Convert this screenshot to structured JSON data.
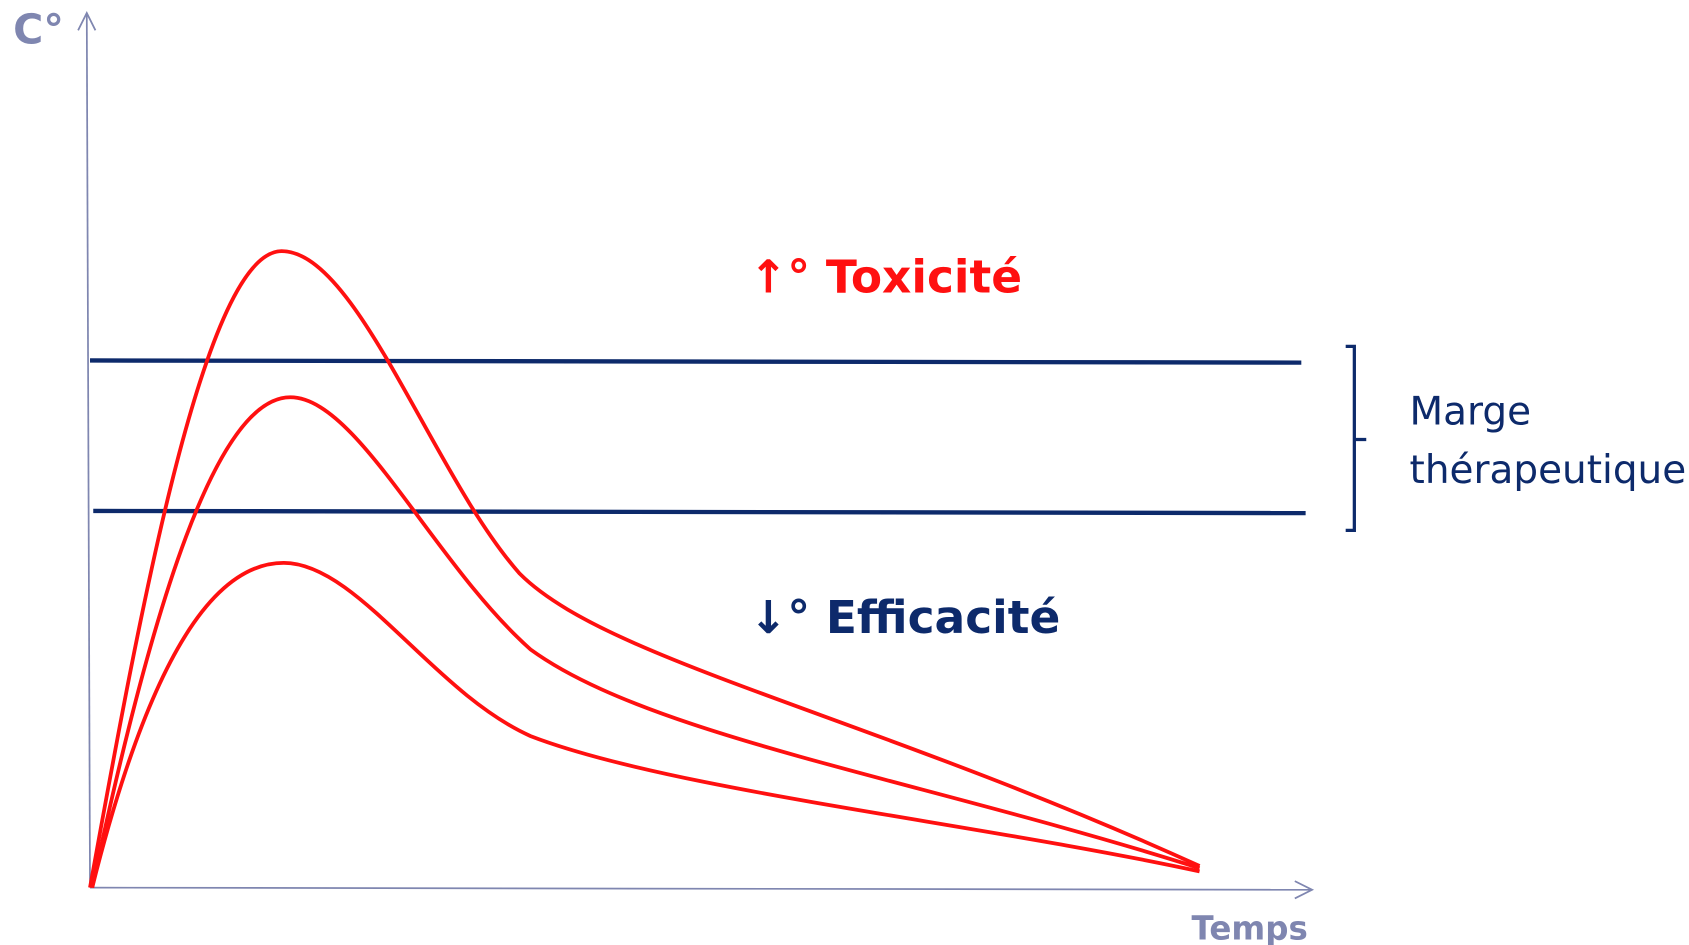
{
  "y_axis_label": "C°",
  "x_axis_label": "Temps",
  "toxicity_label": "↑° Toxicité",
  "efficacy_label": "↓° Efficacité",
  "margin_label": {
    "line1": "Marge",
    "line2": "thérapeutique"
  }
}
